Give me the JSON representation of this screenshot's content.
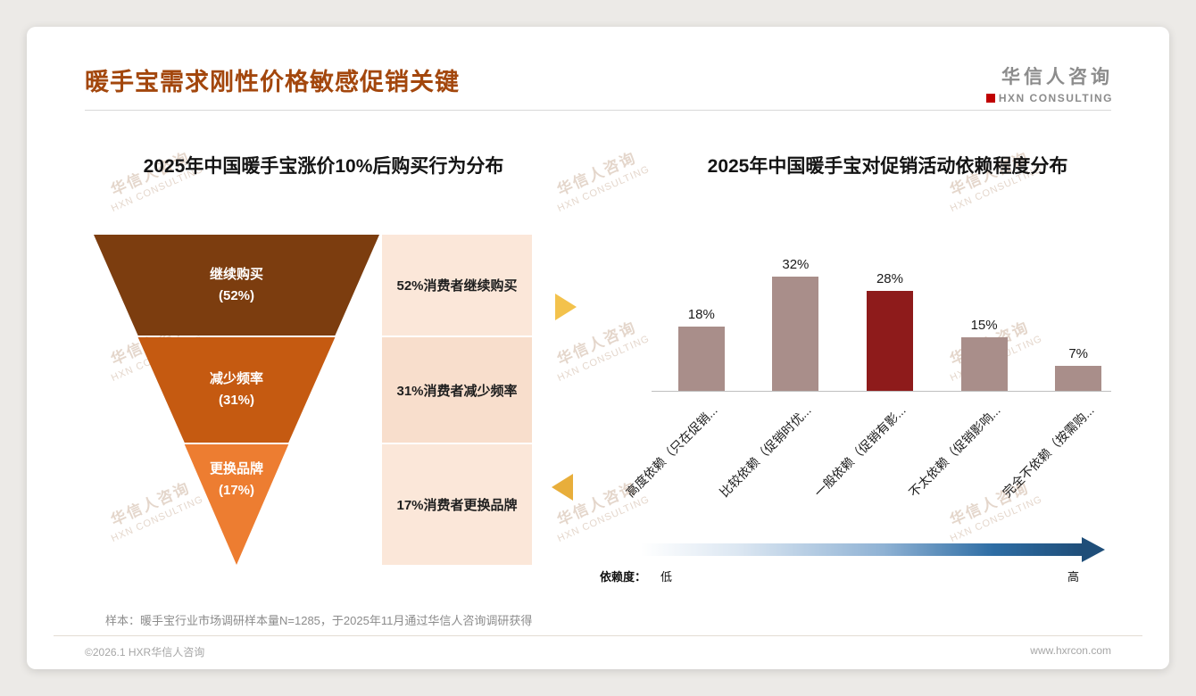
{
  "page": {
    "title": "暖手宝需求刚性价格敏感促销关键",
    "logo": {
      "name": "华信人咨询",
      "sub": "HXN CONSULTING"
    },
    "watermark": {
      "line1": "华信人咨询",
      "line2": "HXN CONSULTING"
    },
    "footnote": "样本：暖手宝行业市场调研样本量N=1285，于2025年11月通过华信人咨询调研获得",
    "footer": {
      "left": "©2026.1 HXR华信人咨询",
      "right": "www.hxrcon.com"
    }
  },
  "chart_data": [
    {
      "type": "funnel",
      "title": "2025年中国暖手宝涨价10%后购买行为分布",
      "unit": "%",
      "segments": [
        {
          "label": "继续购买",
          "pct_label": "(52%)",
          "value": 52,
          "annotation": "52%消费者继续购买",
          "color": "#7C3D0F"
        },
        {
          "label": "减少频率",
          "pct_label": "(31%)",
          "value": 31,
          "annotation": "31%消费者减少频率",
          "color": "#C55A11"
        },
        {
          "label": "更换品牌",
          "pct_label": "(17%)",
          "value": 17,
          "annotation": "17%消费者更换品牌",
          "color": "#ED7D31"
        }
      ]
    },
    {
      "type": "bar",
      "title": "2025年中国暖手宝对促销活动依赖程度分布",
      "categories": [
        "高度依赖（只在促销...",
        "比较依赖（促销时优...",
        "一般依赖（促销有影...",
        "不太依赖（促销影响...",
        "完全不依赖（按需购..."
      ],
      "values": [
        18,
        32,
        28,
        15,
        7
      ],
      "value_labels": [
        "18%",
        "32%",
        "28%",
        "15%",
        "7%"
      ],
      "bar_colors": [
        "#A98E8A",
        "#A98E8A",
        "#8E1B1B",
        "#A98E8A",
        "#A98E8A"
      ],
      "highlight_index": 2,
      "ylim": [
        0,
        35
      ],
      "axis_legend": {
        "label": "依赖度：",
        "low": "低",
        "high": "高"
      }
    }
  ]
}
